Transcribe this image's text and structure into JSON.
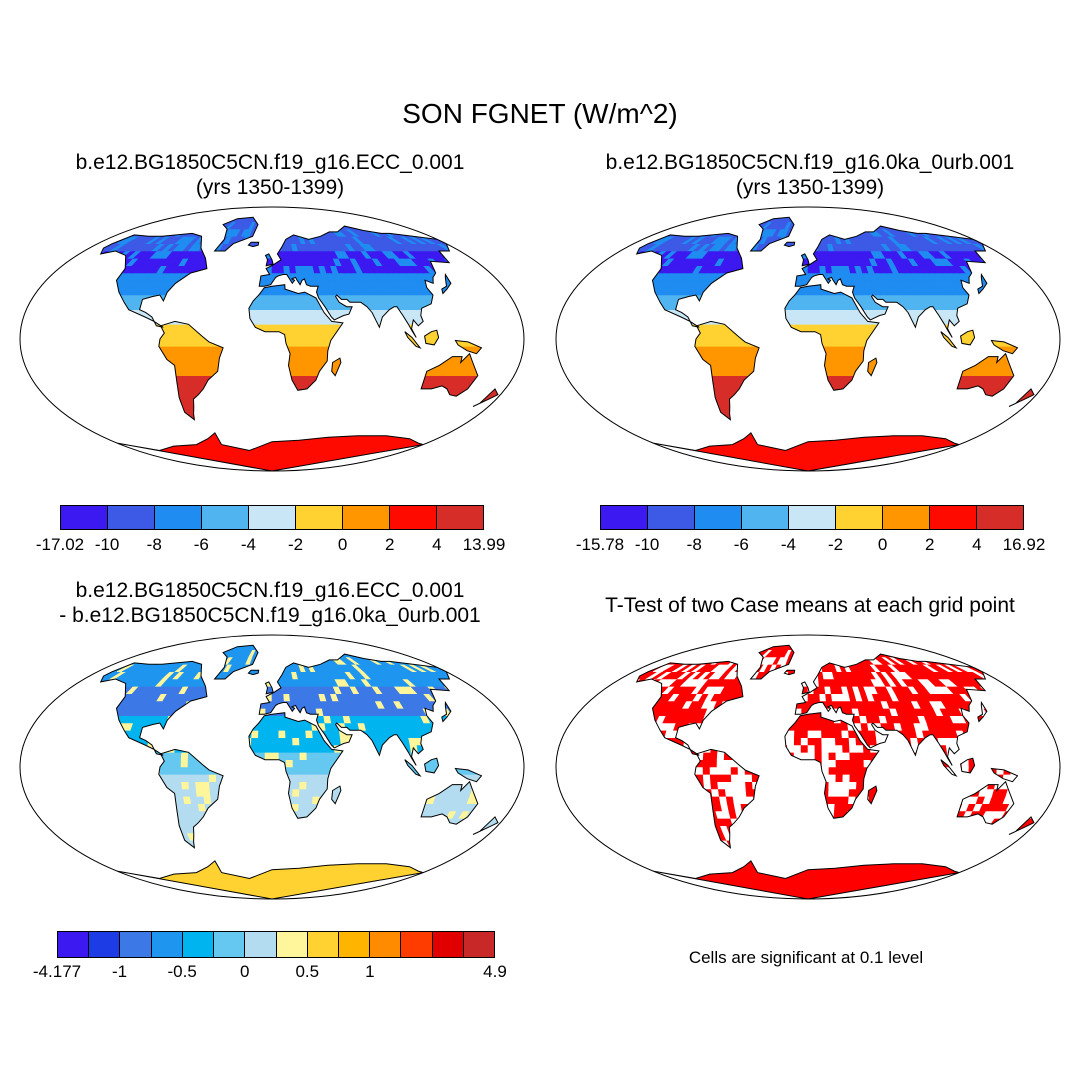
{
  "figure": {
    "title": "SON FGNET (W/m^2)"
  },
  "panels": [
    {
      "id": "p1",
      "title1": "b.e12.BG1850C5CN.f19_g16.ECC_0.001",
      "title2": "(yrs 1350-1399)"
    },
    {
      "id": "p2",
      "title1": "b.e12.BG1850C5CN.f19_g16.0ka_0urb.001",
      "title2": "(yrs 1350-1399)"
    },
    {
      "id": "p3",
      "title1": "b.e12.BG1850C5CN.f19_g16.ECC_0.001",
      "title2": "- b.e12.BG1850C5CN.f19_g16.0ka_0urb.001"
    },
    {
      "id": "p4",
      "title1": "T-Test of two Case means at each grid point",
      "title2": ""
    }
  ],
  "colorbars": [
    {
      "id": "cb1",
      "colors": [
        "#3c19f0",
        "#3c5ae6",
        "#1e8cf0",
        "#50b4f0",
        "#c8e6f5",
        "#ffd232",
        "#ff9600",
        "#ff0a00",
        "#d72d28"
      ],
      "labels": [
        "-17.02",
        "-10",
        "-8",
        "-6",
        "-4",
        "-2",
        "0",
        "2",
        "4",
        "13.99"
      ]
    },
    {
      "id": "cb2",
      "colors": [
        "#3c19f0",
        "#3c5ae6",
        "#1e8cf0",
        "#50b4f0",
        "#c8e6f5",
        "#ffd232",
        "#ff9600",
        "#ff0a00",
        "#d72d28"
      ],
      "labels": [
        "-15.78",
        "-10",
        "-8",
        "-6",
        "-4",
        "-2",
        "0",
        "2",
        "4",
        "16.92"
      ]
    },
    {
      "id": "cb3",
      "colors": [
        "#3c19f0",
        "#1e3ce6",
        "#3c78e6",
        "#1e96f0",
        "#00b4f0",
        "#64c8f0",
        "#b4dcf0",
        "#fff59b",
        "#ffd232",
        "#ffb400",
        "#ff8c00",
        "#ff3c00",
        "#e10000",
        "#c82828"
      ],
      "labels": [
        "-4.177",
        "",
        "-1",
        "",
        "-0.5",
        "",
        "0",
        "",
        "0.5",
        "",
        "1",
        "",
        "",
        "",
        "4.9"
      ]
    }
  ],
  "significance_note": "Cells are significant at 0.1 level",
  "colors": {
    "land_outline": "#000000",
    "ocean": "#ffffff",
    "significant": "#ff0000"
  }
}
